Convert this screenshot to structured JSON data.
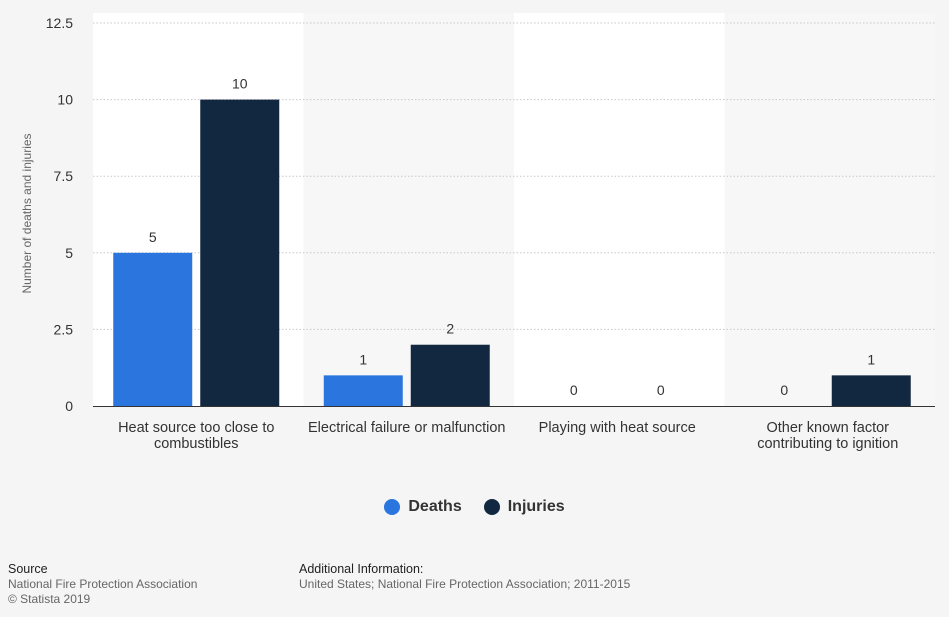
{
  "chart_data": {
    "type": "bar",
    "categories": [
      [
        "Heat source too close to",
        "combustibles"
      ],
      [
        "Electrical failure or malfunction"
      ],
      [
        "Playing with heat source"
      ],
      [
        "Other known factor",
        "contributing to ignition"
      ]
    ],
    "series": [
      {
        "name": "Deaths",
        "color": "#2a75de",
        "values": [
          5,
          1,
          0,
          0
        ]
      },
      {
        "name": "Injuries",
        "color": "#112840",
        "values": [
          10,
          2,
          0,
          1
        ]
      }
    ],
    "ylabel": "Number of deaths and injuries",
    "ylim": [
      0,
      12.5
    ],
    "yticks": [
      "0",
      "2.5",
      "5",
      "7.5",
      "10",
      "12.5"
    ],
    "grid": true,
    "legend_position": "bottom-center"
  },
  "legend": {
    "items": [
      {
        "label": "Deaths",
        "color": "#2a75de"
      },
      {
        "label": "Injuries",
        "color": "#112840"
      }
    ]
  },
  "footer": {
    "source_heading": "Source",
    "source_name": "National Fire Protection Association",
    "copyright": "© Statista 2019",
    "info_heading": "Additional Information:",
    "info_text": "United States; National Fire Protection Association; 2011-2015"
  }
}
